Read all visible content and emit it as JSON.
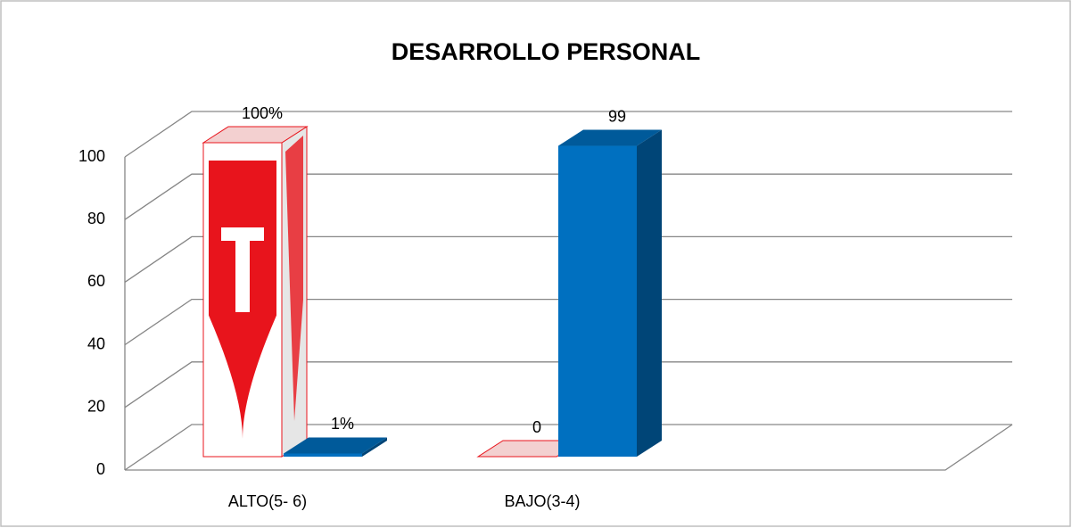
{
  "chart_data": {
    "type": "bar3d",
    "title": "DESARROLLO PERSONAL",
    "categories": [
      "ALTO(5- 6)",
      "BAJO(3-4)"
    ],
    "series": [
      {
        "color": "#e8141c",
        "values": [
          100,
          0
        ],
        "value_labels": [
          "100%",
          "0"
        ]
      },
      {
        "color": "#0070c0",
        "values": [
          1,
          99
        ],
        "value_labels": [
          "1%",
          "99"
        ]
      }
    ],
    "ylim": [
      0,
      100
    ],
    "yticks": [
      0,
      20,
      40,
      60,
      80,
      100
    ],
    "grid": true
  }
}
